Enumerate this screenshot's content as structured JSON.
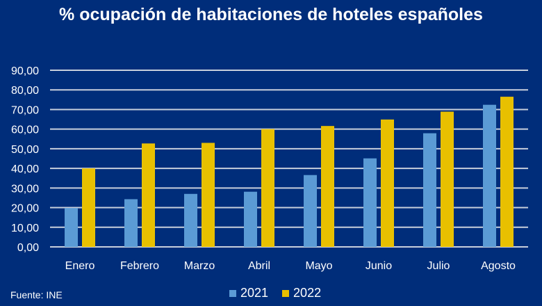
{
  "chart_data": {
    "type": "bar",
    "title": "% ocupación de habitaciones de hoteles españoles",
    "categories": [
      "Enero",
      "Febrero",
      "Marzo",
      "Abril",
      "Mayo",
      "Junio",
      "Julio",
      "Agosto"
    ],
    "series": [
      {
        "name": "2021",
        "color": "#5b9bd5",
        "values": [
          19.8,
          24.3,
          27.0,
          28.1,
          36.6,
          45.1,
          57.9,
          72.4
        ]
      },
      {
        "name": "2022",
        "color": "#e8c000",
        "values": [
          40.0,
          52.7,
          53.0,
          60.0,
          61.6,
          64.9,
          68.9,
          76.5
        ]
      }
    ],
    "ylim": [
      0,
      90
    ],
    "yticks": [
      "0,00",
      "10,00",
      "20,00",
      "30,00",
      "40,00",
      "50,00",
      "60,00",
      "70,00",
      "80,00",
      "90,00"
    ],
    "grid": true,
    "legend": "bottom",
    "source": "Fuente: INE",
    "background": "#002d7a"
  }
}
